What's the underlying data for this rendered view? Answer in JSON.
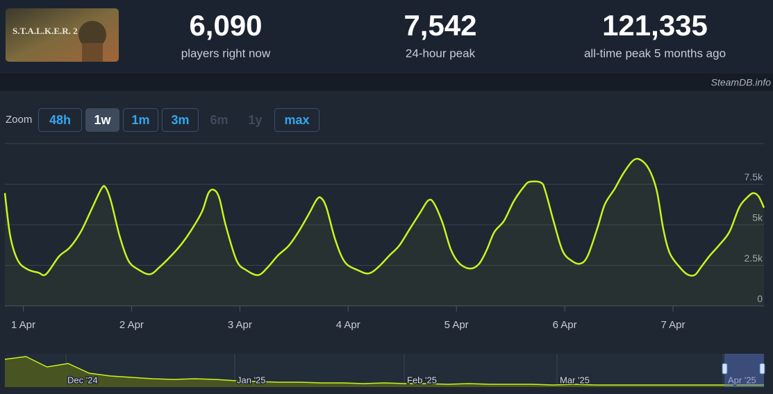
{
  "header": {
    "logo_text": "S.T.A.L.K.E.R. 2",
    "stats": [
      {
        "value": "6,090",
        "label": "players right now"
      },
      {
        "value": "7,542",
        "label": "24-hour peak"
      },
      {
        "value": "121,335",
        "label": "all-time peak 5 months ago"
      }
    ]
  },
  "credit": "SteamDB.info",
  "zoom": {
    "label": "Zoom",
    "buttons": [
      {
        "text": "48h",
        "state": "enabled"
      },
      {
        "text": "1w",
        "state": "active"
      },
      {
        "text": "1m",
        "state": "enabled"
      },
      {
        "text": "3m",
        "state": "enabled"
      },
      {
        "text": "6m",
        "state": "disabled"
      },
      {
        "text": "1y",
        "state": "disabled"
      },
      {
        "text": "max",
        "state": "enabled"
      }
    ]
  },
  "chart_data": [
    {
      "type": "line",
      "area": true,
      "color": "#c9f41f",
      "grid": true,
      "x": [
        0.83,
        0.88,
        0.95,
        1.04,
        1.14,
        1.21,
        1.33,
        1.43,
        1.53,
        1.62,
        1.72,
        1.76,
        1.81,
        1.89,
        1.97,
        2.06,
        2.17,
        2.26,
        2.36,
        2.46,
        2.55,
        2.65,
        2.71,
        2.76,
        2.81,
        2.87,
        2.97,
        3.06,
        3.17,
        3.26,
        3.35,
        3.45,
        3.54,
        3.64,
        3.71,
        3.75,
        3.8,
        3.88,
        3.97,
        4.09,
        4.19,
        4.28,
        4.38,
        4.47,
        4.57,
        4.67,
        4.74,
        4.79,
        4.87,
        4.95,
        5.03,
        5.13,
        5.21,
        5.28,
        5.35,
        5.44,
        5.53,
        5.63,
        5.68,
        5.78,
        5.82,
        5.9,
        5.98,
        6.06,
        6.14,
        6.21,
        6.3,
        6.37,
        6.46,
        6.54,
        6.63,
        6.7,
        6.78,
        6.85,
        6.91,
        6.97,
        7.06,
        7.13,
        7.2,
        7.26,
        7.34,
        7.42,
        7.52,
        7.61,
        7.68,
        7.74,
        7.79,
        7.84
      ],
      "values": [
        6950,
        4300,
        2800,
        2250,
        2050,
        1950,
        3050,
        3600,
        4550,
        5800,
        7200,
        7300,
        6450,
        4300,
        2800,
        2250,
        1950,
        2400,
        3050,
        3800,
        4650,
        5800,
        6950,
        7150,
        6650,
        4950,
        2800,
        2200,
        1900,
        2400,
        3100,
        3700,
        4550,
        5700,
        6550,
        6650,
        6050,
        4100,
        2700,
        2200,
        2000,
        2400,
        3100,
        3700,
        4750,
        5800,
        6500,
        6350,
        5150,
        3450,
        2600,
        2300,
        2600,
        3450,
        4550,
        5250,
        6450,
        7400,
        7650,
        7600,
        7100,
        5150,
        3400,
        2800,
        2600,
        3050,
        4750,
        6250,
        7200,
        8150,
        8950,
        9000,
        8400,
        7100,
        4750,
        3250,
        2400,
        1950,
        1900,
        2400,
        3100,
        3700,
        4550,
        6050,
        6650,
        6950,
        6750,
        6050
      ],
      "xlim": [
        0.83,
        7.84
      ],
      "xticks": [
        {
          "value": 1,
          "label": "1 Apr"
        },
        {
          "value": 2,
          "label": "2 Apr"
        },
        {
          "value": 3,
          "label": "3 Apr"
        },
        {
          "value": 4,
          "label": "4 Apr"
        },
        {
          "value": 5,
          "label": "5 Apr"
        },
        {
          "value": 6,
          "label": "6 Apr"
        },
        {
          "value": 7,
          "label": "7 Apr"
        }
      ],
      "ylim": [
        0,
        10000
      ],
      "yticks": [
        0,
        {
          "value": 2500,
          "label": "2.5k"
        },
        {
          "value": 5000,
          "label": "5k"
        },
        {
          "value": 7500,
          "label": "7.5k"
        }
      ]
    },
    {
      "type": "area",
      "color": "#c9f41f",
      "values": [
        50000,
        55000,
        36250,
        42500,
        25000,
        20000,
        17500,
        15000,
        13750,
        15000,
        13750,
        11250,
        10000,
        8750,
        8750,
        7500,
        7500,
        6250,
        7500,
        6250,
        6250,
        5000,
        6250,
        5000,
        5000,
        5000,
        3750,
        5000,
        3750,
        3750,
        3750,
        3750,
        3750,
        3750,
        3750,
        3750,
        3750
      ],
      "ylim": [
        0,
        60000
      ],
      "x_labels": [
        "Dec '24",
        "Jan '25",
        "Feb '25",
        "Mar '25",
        "Apr '25"
      ]
    }
  ]
}
